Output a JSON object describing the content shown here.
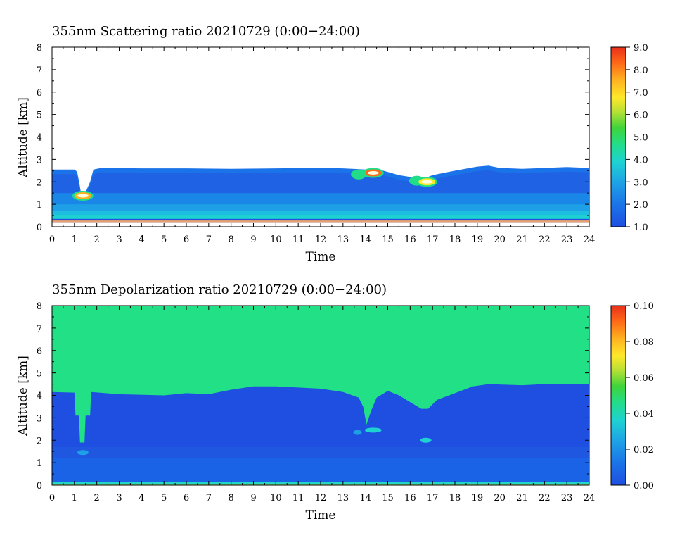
{
  "chart_data": [
    {
      "type": "heatmap",
      "title": "355nm Scattering ratio  20210729 (0:00−24:00)",
      "xlabel": "Time",
      "ylabel": "Altitude [km]",
      "xlim": [
        0,
        24
      ],
      "ylim": [
        0,
        8
      ],
      "xticks": [
        "0",
        "1",
        "2",
        "3",
        "4",
        "5",
        "6",
        "7",
        "8",
        "9",
        "10",
        "11",
        "12",
        "13",
        "14",
        "15",
        "16",
        "17",
        "18",
        "19",
        "20",
        "21",
        "22",
        "23",
        "24"
      ],
      "yticks": [
        "0",
        "1",
        "2",
        "3",
        "4",
        "5",
        "6",
        "7",
        "8"
      ],
      "colorbar": {
        "min": 1.0,
        "max": 9.0,
        "ticks": [
          "1.0",
          "2.0",
          "3.0",
          "4.0",
          "5.0",
          "6.0",
          "7.0",
          "8.0",
          "9.0"
        ],
        "colors": [
          "#1f4fe0",
          "#1a73e8",
          "#1ea0e6",
          "#1ed2d2",
          "#22dd88",
          "#3fd43a",
          "#b7e034",
          "#ffe82a",
          "#ffb020",
          "#ff6a18",
          "#e8301a"
        ]
      },
      "layers": {
        "cloud_top_km": [
          [
            0,
            2.55
          ],
          [
            1.0,
            2.55
          ],
          [
            1.12,
            2.45
          ],
          [
            1.2,
            2.05
          ],
          [
            1.28,
            1.6
          ],
          [
            1.5,
            1.55
          ],
          [
            1.7,
            2.0
          ],
          [
            1.85,
            2.55
          ],
          [
            2.2,
            2.62
          ],
          [
            4,
            2.6
          ],
          [
            6,
            2.6
          ],
          [
            8,
            2.58
          ],
          [
            10,
            2.6
          ],
          [
            12,
            2.62
          ],
          [
            13,
            2.6
          ],
          [
            14,
            2.55
          ],
          [
            14.8,
            2.5
          ],
          [
            15.5,
            2.3
          ],
          [
            16,
            2.22
          ],
          [
            16.5,
            2.1
          ],
          [
            17,
            2.3
          ],
          [
            18,
            2.5
          ],
          [
            19,
            2.68
          ],
          [
            19.5,
            2.72
          ],
          [
            20,
            2.62
          ],
          [
            21,
            2.58
          ],
          [
            22,
            2.62
          ],
          [
            23,
            2.66
          ],
          [
            24,
            2.62
          ]
        ],
        "features": [
          {
            "x": 1.38,
            "y": 1.38,
            "value": 7.0
          },
          {
            "x": 14.35,
            "y": 2.4,
            "value": 8.0
          },
          {
            "x": 13.7,
            "y": 2.33,
            "value": 4.5
          },
          {
            "x": 16.3,
            "y": 2.05,
            "value": 4.5
          },
          {
            "x": 16.75,
            "y": 2.0,
            "value": 6.5
          }
        ]
      }
    },
    {
      "type": "heatmap",
      "title": "355nm Depolarization ratio  20210729 (0:00−24:00)",
      "xlabel": "Time",
      "ylabel": "Altitude [km]",
      "xlim": [
        0,
        24
      ],
      "ylim": [
        0,
        8
      ],
      "xticks": [
        "0",
        "1",
        "2",
        "3",
        "4",
        "5",
        "6",
        "7",
        "8",
        "9",
        "10",
        "11",
        "12",
        "13",
        "14",
        "15",
        "16",
        "17",
        "18",
        "19",
        "20",
        "21",
        "22",
        "23",
        "24"
      ],
      "yticks": [
        "0",
        "1",
        "2",
        "3",
        "4",
        "5",
        "6",
        "7",
        "8"
      ],
      "colorbar": {
        "min": 0.0,
        "max": 0.1,
        "ticks": [
          "0.00",
          "0.02",
          "0.04",
          "0.06",
          "0.08",
          "0.10"
        ],
        "colors": [
          "#1f4fe0",
          "#1a73e8",
          "#1ea0e6",
          "#1ed2d2",
          "#22dd88",
          "#3fd43a",
          "#b7e034",
          "#ffe82a",
          "#ffb020",
          "#ff6a18",
          "#e8301a"
        ]
      },
      "layers": {
        "boundary_km": [
          [
            0,
            4.15
          ],
          [
            1.0,
            4.12
          ],
          [
            1.05,
            3.1
          ],
          [
            1.2,
            3.1
          ],
          [
            1.25,
            1.9
          ],
          [
            1.45,
            1.9
          ],
          [
            1.5,
            3.1
          ],
          [
            1.7,
            3.1
          ],
          [
            1.75,
            4.15
          ],
          [
            3,
            4.05
          ],
          [
            5,
            4.0
          ],
          [
            6,
            4.1
          ],
          [
            7,
            4.05
          ],
          [
            8,
            4.25
          ],
          [
            9,
            4.4
          ],
          [
            10,
            4.4
          ],
          [
            11,
            4.35
          ],
          [
            12,
            4.3
          ],
          [
            13,
            4.15
          ],
          [
            13.7,
            3.9
          ],
          [
            13.9,
            3.5
          ],
          [
            14.05,
            2.7
          ],
          [
            14.25,
            3.3
          ],
          [
            14.5,
            3.9
          ],
          [
            15,
            4.2
          ],
          [
            15.5,
            4.0
          ],
          [
            16,
            3.7
          ],
          [
            16.5,
            3.4
          ],
          [
            16.8,
            3.4
          ],
          [
            17.2,
            3.8
          ],
          [
            18,
            4.1
          ],
          [
            18.8,
            4.4
          ],
          [
            19.5,
            4.5
          ],
          [
            21,
            4.45
          ],
          [
            22,
            4.5
          ],
          [
            23,
            4.5
          ],
          [
            24,
            4.5
          ]
        ]
      }
    }
  ]
}
